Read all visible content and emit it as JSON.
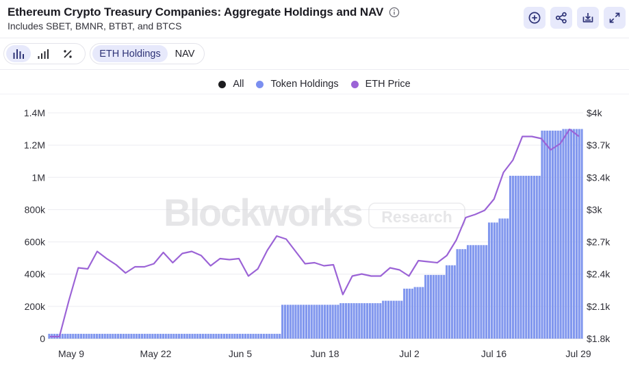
{
  "header": {
    "title": "Ethereum Crypto Treasury Companies: Aggregate Holdings and NAV",
    "subtitle": "Includes SBET, BMNR, BTBT, and BTCS",
    "info_icon": "info-circle-icon",
    "actions": [
      "add-circle-icon",
      "share-icon",
      "download-icon",
      "expand-icon"
    ]
  },
  "toolbar": {
    "chart_types": [
      "bar-chart-icon",
      "column-chart-icon",
      "percent-icon"
    ],
    "metrics": [
      {
        "label": "ETH Holdings",
        "active": true
      },
      {
        "label": "NAV",
        "active": false
      }
    ]
  },
  "watermark": {
    "brand": "Blockworks",
    "tag": "Research"
  },
  "colors": {
    "bars": "#8197ee",
    "line": "#9b63d6",
    "all": "#1d1d1f",
    "accent_bg": "#e7e9fb",
    "accent_fg": "#2d3276"
  },
  "chart_data": {
    "type": "bar",
    "legend": [
      {
        "label": "All",
        "color": "#1d1d1f"
      },
      {
        "label": "Token Holdings",
        "color": "#7b8ff0"
      },
      {
        "label": "ETH Price",
        "color": "#9b63d6"
      }
    ],
    "legend_position": "top-center",
    "x_ticks": [
      "May 9",
      "May 22",
      "Jun 5",
      "Jun 18",
      "Jul 2",
      "Jul 16",
      "Jul 29"
    ],
    "y_left": {
      "ticks": [
        "0",
        "200k",
        "400k",
        "600k",
        "800k",
        "1M",
        "1.2M",
        "1.4M"
      ],
      "lim": [
        0,
        1400000
      ]
    },
    "y_right": {
      "ticks": [
        "$1.8k",
        "$2.1k",
        "$2.4k",
        "$2.7k",
        "$3k",
        "$3.4k",
        "$3.7k",
        "$4k"
      ],
      "lim": [
        1800,
        4000
      ]
    },
    "grid": true,
    "series": [
      {
        "name": "Token Holdings",
        "values": [
          30000,
          30000,
          30000,
          30000,
          30000,
          30000,
          30000,
          30000,
          30000,
          30000,
          30000,
          30000,
          30000,
          30000,
          30000,
          30000,
          30000,
          30000,
          30000,
          30000,
          30000,
          30000,
          30000,
          30000,
          30000,
          30000,
          30000,
          30000,
          30000,
          30000,
          30000,
          30000,
          30000,
          30000,
          30000,
          30000,
          30000,
          30000,
          30000,
          30000,
          30000,
          30000,
          30000,
          30000,
          30000,
          30000,
          30000,
          30000,
          30000,
          30000,
          30000,
          30000,
          30000,
          30000,
          30000,
          30000,
          30000,
          30000,
          30000,
          30000,
          30000,
          30000,
          30000,
          30000,
          30000,
          30000,
          30000,
          30000,
          30000,
          30000,
          30000,
          30000,
          30000,
          30000,
          30000,
          30000,
          30000,
          30000,
          30000,
          30000,
          30000,
          30000,
          30000,
          30000,
          30000,
          30000,
          30000,
          30000,
          210000,
          210000,
          210000,
          210000,
          210000,
          210000,
          210000,
          210000,
          210000,
          210000,
          210000,
          210000,
          210000,
          210000,
          210000,
          210000,
          210000,
          210000,
          210000,
          210000,
          210000,
          210000,
          220000,
          220000,
          220000,
          220000,
          220000,
          220000,
          220000,
          220000,
          220000,
          220000,
          220000,
          220000,
          220000,
          220000,
          220000,
          220000,
          235000,
          235000,
          235000,
          235000,
          235000,
          235000,
          235000,
          235000,
          310000,
          310000,
          310000,
          310000,
          320000,
          320000,
          320000,
          320000,
          395000,
          395000,
          395000,
          395000,
          395000,
          395000,
          395000,
          395000,
          455000,
          455000,
          455000,
          455000,
          555000,
          555000,
          555000,
          555000,
          580000,
          580000,
          580000,
          580000,
          580000,
          580000,
          580000,
          580000,
          720000,
          720000,
          720000,
          720000,
          745000,
          745000,
          745000,
          745000,
          1010000,
          1010000,
          1010000,
          1010000,
          1010000,
          1010000,
          1010000,
          1010000,
          1010000,
          1010000,
          1010000,
          1010000,
          1290000,
          1290000,
          1290000,
          1290000,
          1290000,
          1290000,
          1290000,
          1290000,
          1300000,
          1300000,
          1300000,
          1300000,
          1300000,
          1300000,
          1300000,
          1300000
        ]
      },
      {
        "name": "ETH Price",
        "axis": "right",
        "points": [
          [
            0,
            1820
          ],
          [
            1,
            1820
          ],
          [
            2,
            2170
          ],
          [
            3,
            2490
          ],
          [
            4,
            2480
          ],
          [
            5,
            2650
          ],
          [
            6,
            2580
          ],
          [
            7,
            2520
          ],
          [
            8,
            2440
          ],
          [
            9,
            2500
          ],
          [
            10,
            2500
          ],
          [
            11,
            2530
          ],
          [
            12,
            2640
          ],
          [
            13,
            2540
          ],
          [
            14,
            2630
          ],
          [
            15,
            2650
          ],
          [
            16,
            2610
          ],
          [
            17,
            2510
          ],
          [
            18,
            2580
          ],
          [
            19,
            2570
          ],
          [
            20,
            2580
          ],
          [
            21,
            2410
          ],
          [
            22,
            2480
          ],
          [
            23,
            2660
          ],
          [
            24,
            2800
          ],
          [
            25,
            2770
          ],
          [
            26,
            2650
          ],
          [
            27,
            2530
          ],
          [
            28,
            2540
          ],
          [
            29,
            2510
          ],
          [
            30,
            2520
          ],
          [
            31,
            2230
          ],
          [
            32,
            2410
          ],
          [
            33,
            2430
          ],
          [
            34,
            2410
          ],
          [
            35,
            2410
          ],
          [
            36,
            2490
          ],
          [
            37,
            2470
          ],
          [
            38,
            2410
          ],
          [
            39,
            2560
          ],
          [
            40,
            2550
          ],
          [
            41,
            2540
          ],
          [
            42,
            2610
          ],
          [
            43,
            2760
          ],
          [
            44,
            2980
          ],
          [
            45,
            3010
          ],
          [
            46,
            3050
          ],
          [
            47,
            3160
          ],
          [
            48,
            3420
          ],
          [
            49,
            3540
          ],
          [
            50,
            3770
          ],
          [
            51,
            3770
          ],
          [
            52,
            3750
          ],
          [
            53,
            3640
          ],
          [
            54,
            3700
          ],
          [
            55,
            3840
          ],
          [
            56,
            3770
          ]
        ]
      }
    ]
  }
}
